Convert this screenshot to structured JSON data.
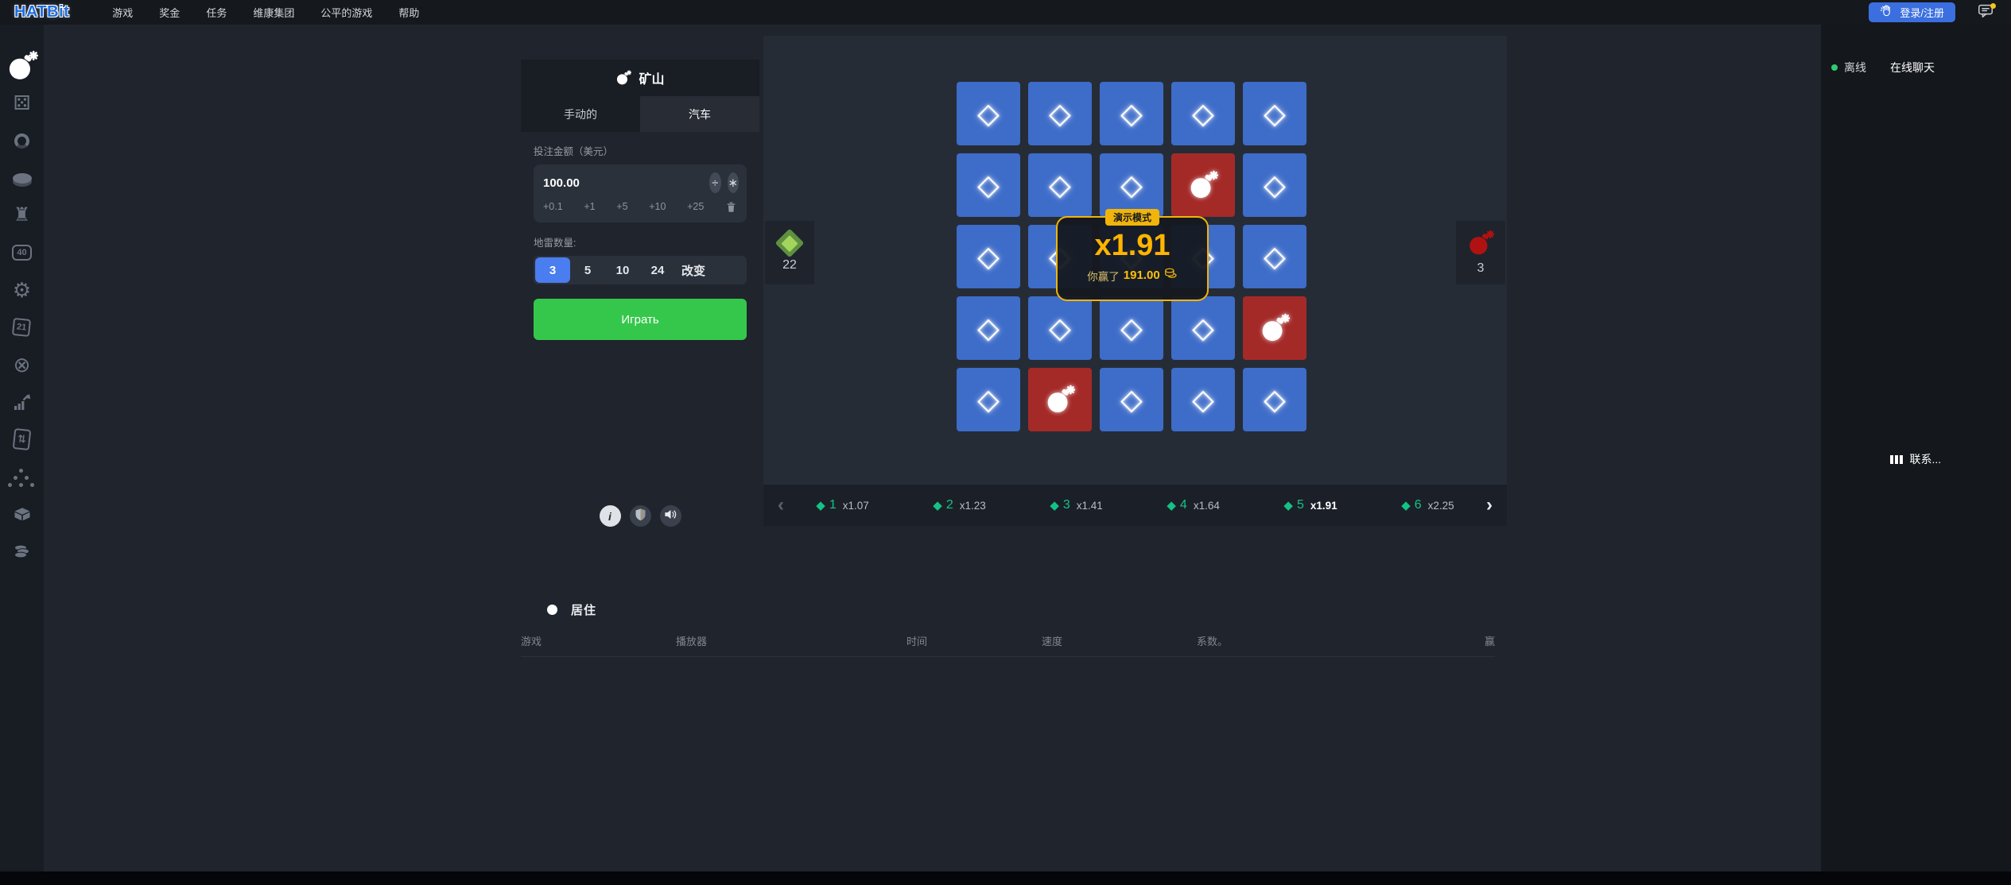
{
  "navbar": {
    "logo": "HATBit",
    "menu": [
      {
        "label": "游戏"
      },
      {
        "label": "奖金"
      },
      {
        "label": "任务"
      },
      {
        "label": "维康集团"
      },
      {
        "label": "公平的游戏"
      },
      {
        "label": "帮助"
      }
    ],
    "login_label": "登录/注册"
  },
  "sidebar": {
    "items": [
      {
        "name": "mines",
        "icon": "bomb-icon",
        "active": true
      },
      {
        "name": "dice",
        "icon": "dice-icon",
        "active": false
      },
      {
        "name": "ring",
        "icon": "ring-icon",
        "active": false
      },
      {
        "name": "coinflip",
        "icon": "coin-icon",
        "active": false
      },
      {
        "name": "tower",
        "icon": "tower-icon",
        "active": false
      },
      {
        "name": "keno-40",
        "icon": "forty-icon",
        "active": false
      },
      {
        "name": "wheel",
        "icon": "saw-icon",
        "active": false
      },
      {
        "name": "blackjack-21",
        "icon": "cards21-icon",
        "active": false
      },
      {
        "name": "roulette",
        "icon": "roulette-icon",
        "active": false
      },
      {
        "name": "crash",
        "icon": "crash-icon",
        "active": false
      },
      {
        "name": "hilo",
        "icon": "hilo-icon",
        "active": false
      },
      {
        "name": "plinko",
        "icon": "plinko-icon",
        "active": false
      },
      {
        "name": "cases",
        "icon": "box-icon",
        "active": false
      },
      {
        "name": "coins",
        "icon": "coins-icon",
        "active": false
      }
    ]
  },
  "game": {
    "title": "矿山",
    "tabs": {
      "manual": "手动的",
      "auto": "汽车",
      "active": "auto"
    },
    "bet": {
      "label": "投注金额（美元）",
      "amount": "100.00",
      "divide_label": "÷",
      "multiply_label": "∗",
      "quick": [
        "+0.1",
        "+1",
        "+5",
        "+10",
        "+25"
      ]
    },
    "mines": {
      "label": "地雷数量:",
      "options": [
        "3",
        "5",
        "10",
        "24",
        "改变"
      ],
      "selected": "3"
    },
    "play_label": "Играть",
    "board": {
      "gems_remaining": "22",
      "mines_count": "3",
      "cells": [
        "gem",
        "gem",
        "gem",
        "gem",
        "gem",
        "gem",
        "gem",
        "gem",
        "bomb",
        "gem",
        "gem",
        "gem",
        "gem",
        "gem",
        "gem",
        "gem",
        "gem",
        "gem",
        "gem",
        "bomb",
        "gem",
        "bomb",
        "gem",
        "gem",
        "gem"
      ]
    },
    "popup": {
      "badge": "演示模式",
      "multiplier": "x1.91",
      "won_label": "你赢了",
      "won_amount": "191.00"
    },
    "multipliers": [
      {
        "step": "1",
        "value": "x1.07",
        "active": false
      },
      {
        "step": "2",
        "value": "x1.23",
        "active": false
      },
      {
        "step": "3",
        "value": "x1.41",
        "active": false
      },
      {
        "step": "4",
        "value": "x1.64",
        "active": false
      },
      {
        "step": "5",
        "value": "x1.91",
        "active": true
      },
      {
        "step": "6",
        "value": "x2.25",
        "active": false
      }
    ]
  },
  "chat": {
    "status": "离线",
    "title": "在线聊天",
    "contact": "联系..."
  },
  "live": {
    "title": "居住",
    "columns": [
      "游戏",
      "播放器",
      "时间",
      "速度",
      "系数。",
      "赢"
    ]
  },
  "colors": {
    "accent_blue": "#4a7df0",
    "cell_blue": "#3d6cc9",
    "cell_red": "#a42a28",
    "play_green": "#35c74b",
    "gold": "#f0b40a",
    "mult_green": "#15c286"
  }
}
